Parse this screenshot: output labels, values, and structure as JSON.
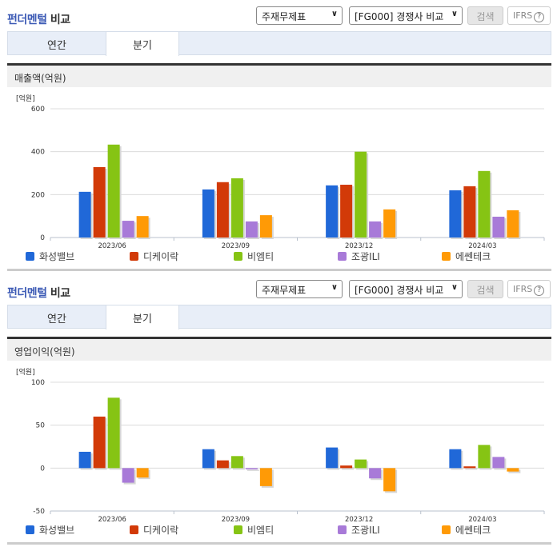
{
  "panels": [
    {
      "title_highlight": "펀더멘털",
      "title_rest": " 비교",
      "select_statement": "주재무제표",
      "select_compare": "[FG000] 경쟁사 비교",
      "search_label": "검색",
      "ifrs_label": "IFRS",
      "ifrs_help": "?",
      "tabs": [
        {
          "label": "연간",
          "active": false
        },
        {
          "label": "분기",
          "active": true
        }
      ],
      "section_title": "매출액(억원)"
    },
    {
      "title_highlight": "펀더멘털",
      "title_rest": " 비교",
      "select_statement": "주재무제표",
      "select_compare": "[FG000] 경쟁사 비교",
      "search_label": "검색",
      "ifrs_label": "IFRS",
      "ifrs_help": "?",
      "tabs": [
        {
          "label": "연간",
          "active": false
        },
        {
          "label": "분기",
          "active": true
        }
      ],
      "section_title": "영업이익(억원)"
    }
  ],
  "legend": [
    {
      "name": "화성밸브",
      "color": "#2068d8"
    },
    {
      "name": "디케이락",
      "color": "#d23a08"
    },
    {
      "name": "비엠티",
      "color": "#86c414"
    },
    {
      "name": "조광ILI",
      "color": "#a87ad8"
    },
    {
      "name": "에쎈테크",
      "color": "#ff9a06"
    }
  ],
  "chart_data": [
    {
      "type": "bar",
      "title": "매출액(억원)",
      "ylabel": "[억원]",
      "xlabel": "",
      "categories": [
        "2023/06",
        "2023/09",
        "2023/12",
        "2024/03"
      ],
      "yticks": [
        0,
        200,
        400,
        600
      ],
      "ylim": [
        0,
        600
      ],
      "grid": true,
      "legend_position": "bottom",
      "series": [
        {
          "name": "화성밸브",
          "values": [
            213,
            224,
            243,
            220
          ]
        },
        {
          "name": "디케이락",
          "values": [
            328,
            258,
            246,
            239
          ]
        },
        {
          "name": "비엠티",
          "values": [
            433,
            276,
            400,
            310
          ]
        },
        {
          "name": "조광ILI",
          "values": [
            78,
            75,
            75,
            97
          ]
        },
        {
          "name": "에쎈테크",
          "values": [
            100,
            104,
            131,
            127
          ]
        }
      ]
    },
    {
      "type": "bar",
      "title": "영업이익(억원)",
      "ylabel": "[억원]",
      "xlabel": "",
      "categories": [
        "2023/06",
        "2023/09",
        "2023/12",
        "2024/03"
      ],
      "yticks": [
        -50,
        0,
        50,
        100
      ],
      "ylim": [
        -50,
        100
      ],
      "grid": true,
      "legend_position": "bottom",
      "series": [
        {
          "name": "화성밸브",
          "values": [
            19,
            22,
            24,
            22
          ]
        },
        {
          "name": "디케이락",
          "values": [
            60,
            9,
            3,
            2
          ]
        },
        {
          "name": "비엠티",
          "values": [
            82,
            14,
            10,
            27
          ]
        },
        {
          "name": "조광ILI",
          "values": [
            -17,
            -1,
            -12,
            13
          ]
        },
        {
          "name": "에쎈테크",
          "values": [
            -11,
            -21,
            -27,
            -4
          ]
        }
      ]
    }
  ]
}
